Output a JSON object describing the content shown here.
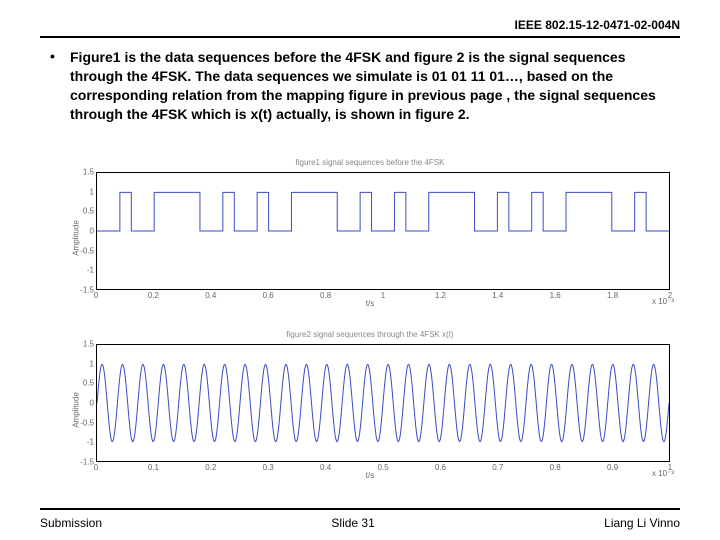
{
  "header": {
    "docId": "IEEE 802.15-12-0471-02-004N"
  },
  "bullet": "•",
  "bodyText": "Figure1 is the data sequences before the 4FSK and figure 2 is the signal sequences through the 4FSK. The data sequences we simulate is 01 01 11 01…, based on the corresponding relation from the mapping figure in previous page , the signal sequences through the 4FSK which is x(t) actually, is shown in figure 2.",
  "footer": {
    "left": "Submission",
    "center": "Slide 31",
    "right": "Liang Li Vinno"
  },
  "chart1": {
    "type": "line",
    "title": "figure1 signal sequences before the 4FSK",
    "ylabel": "Amplitude",
    "xlabel": "t/s",
    "xExp": "x 10⁻³",
    "ylim": [
      -1.5,
      1.5
    ],
    "xlim": [
      0,
      2.0
    ],
    "yticks": [
      -1.5,
      -1,
      -0.5,
      0,
      0.5,
      1,
      1.5
    ],
    "xticks": [
      0,
      0.2,
      0.4,
      0.6,
      0.8,
      1,
      1.2,
      1.4,
      1.6,
      1.8,
      2
    ],
    "line_color": "#3b4cc0",
    "line_width": 1,
    "grid_color": "#cccccc",
    "background_color": "#ffffff",
    "symbolWidths": [
      0.08,
      0.04,
      0.08,
      0.04,
      0.08,
      0.04,
      0.08,
      0.04,
      0.08,
      0.04,
      0.08,
      0.04,
      0.08,
      0.04,
      0.08,
      0.04,
      0.08,
      0.04,
      0.08,
      0.04,
      0.08,
      0.04,
      0.08,
      0.04,
      0.08,
      0.04,
      0.08,
      0.04,
      0.08,
      0.04,
      0.08,
      0.04,
      0.08
    ],
    "symbolValues": [
      0,
      1,
      0,
      1,
      1,
      1,
      0,
      1,
      0,
      1,
      0,
      1,
      1,
      1,
      0,
      1,
      0,
      1,
      0,
      1,
      1,
      1,
      0,
      1,
      0,
      1,
      0,
      1,
      1,
      1,
      0,
      1,
      0
    ]
  },
  "chart2": {
    "type": "line",
    "title": "figure2 signal sequences through the 4FSK x(t)",
    "ylabel": "Amplitude",
    "xlabel": "t/s",
    "xExp": "x 10⁻³",
    "ylim": [
      -1.5,
      1.5
    ],
    "xlim": [
      0,
      1.0
    ],
    "yticks": [
      -1.5,
      -1,
      -0.5,
      0,
      0.5,
      1,
      1.5
    ],
    "xticks": [
      0,
      0.1,
      0.2,
      0.3,
      0.4,
      0.5,
      0.6,
      0.7,
      0.8,
      0.9,
      1
    ],
    "line_color": "#3b4cc0",
    "line_width": 1,
    "grid_color": "#cccccc",
    "background_color": "#ffffff",
    "amplitude": 1.0,
    "cycles": 28
  }
}
